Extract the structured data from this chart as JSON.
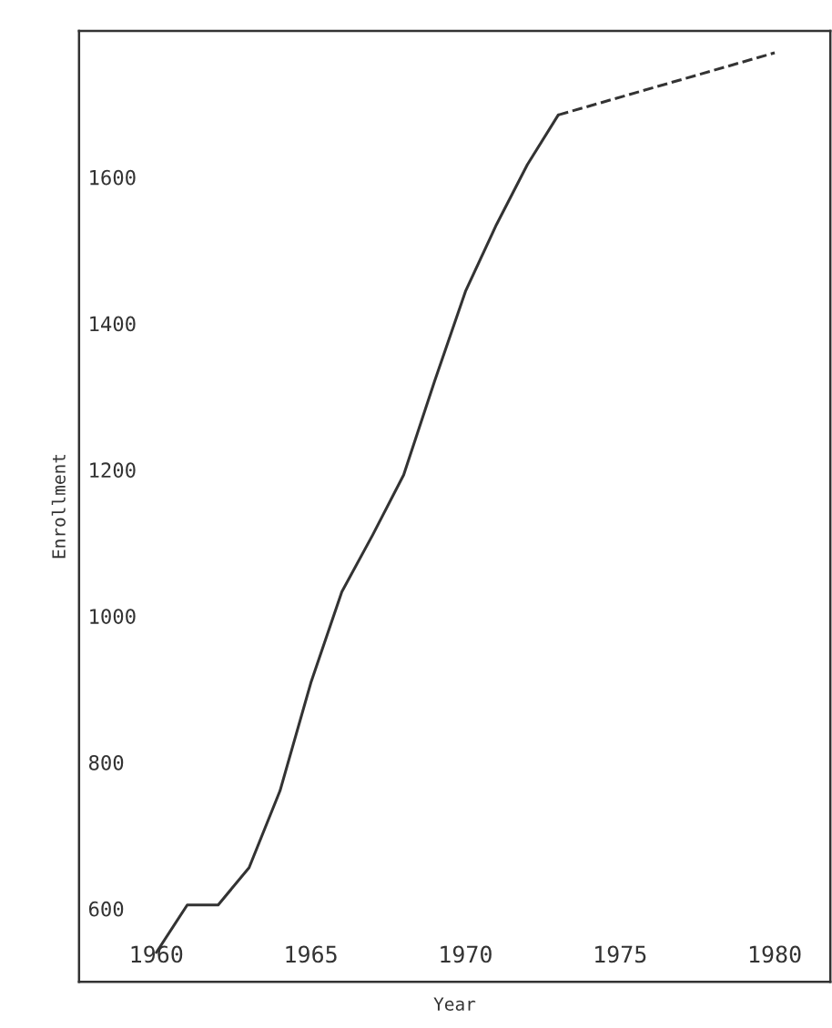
{
  "chart_data": {
    "type": "line",
    "xlabel": "Year",
    "ylabel": "Enrollment",
    "xlim": [
      1957.5,
      1981.8
    ],
    "ylim": [
      500,
      1800
    ],
    "xticks": [
      1960,
      1965,
      1970,
      1975,
      1980
    ],
    "yticks": [
      600,
      800,
      1000,
      1200,
      1400,
      1600
    ],
    "grid": false,
    "legend": false,
    "marker": "none",
    "series": [
      {
        "color": "#333333",
        "line_style": "solid",
        "x": [
          1960,
          1961,
          1962,
          1963,
          1964,
          1965,
          1966,
          1967,
          1968,
          1969,
          1970,
          1971,
          1972,
          1973
        ],
        "values": [
          540,
          605,
          605,
          656,
          761,
          909,
          1033,
          1111,
          1193,
          1321,
          1444,
          1535,
          1617,
          1685
        ]
      },
      {
        "color": "#333333",
        "line_style": "dashed",
        "x": [
          1973,
          1980
        ],
        "values": [
          1685,
          1770
        ]
      }
    ]
  }
}
